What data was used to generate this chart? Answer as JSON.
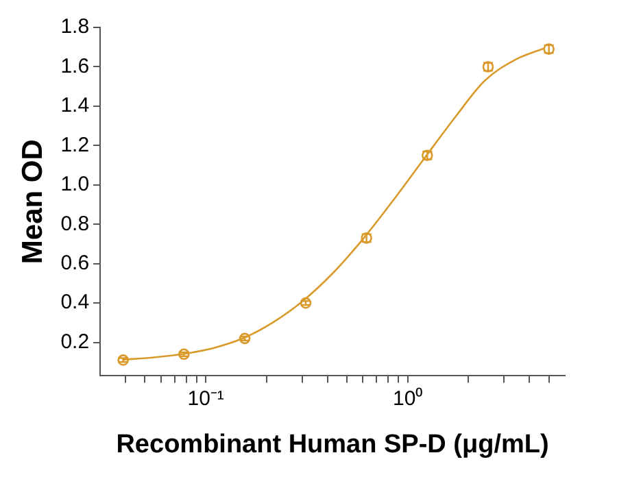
{
  "chart_data": {
    "type": "scatter",
    "xlabel": "Recombinant Human SP-D (μg/mL)",
    "ylabel": "Mean OD",
    "log": "x",
    "xlim": [
      0.03,
      6
    ],
    "xticks": [
      {
        "value": 0.04,
        "label": null
      },
      {
        "value": 0.05,
        "label": null
      },
      {
        "value": 0.06,
        "label": null
      },
      {
        "value": 0.07,
        "label": null
      },
      {
        "value": 0.08,
        "label": null
      },
      {
        "value": 0.09,
        "label": null
      },
      {
        "value": 0.1,
        "label": "10⁻¹"
      },
      {
        "value": 0.2,
        "label": null
      },
      {
        "value": 0.3,
        "label": null
      },
      {
        "value": 0.4,
        "label": null
      },
      {
        "value": 0.5,
        "label": null
      },
      {
        "value": 0.6,
        "label": null
      },
      {
        "value": 0.7,
        "label": null
      },
      {
        "value": 0.8,
        "label": null
      },
      {
        "value": 0.9,
        "label": null
      },
      {
        "value": 1,
        "label": "10⁰"
      },
      {
        "value": 2,
        "label": null
      },
      {
        "value": 3,
        "label": null
      },
      {
        "value": 4,
        "label": null
      },
      {
        "value": 5,
        "label": null
      }
    ],
    "ylim": [
      0.03,
      1.8
    ],
    "yticks": [
      0.2,
      0.4,
      0.6,
      0.8,
      {
        "value": 1,
        "label": "1.0"
      },
      1.2,
      1.4,
      1.6,
      1.8
    ],
    "grid": false,
    "legend": false,
    "series": [
      {
        "marker": "circle",
        "color": "#d99a2b",
        "x": [
          0.039,
          0.078,
          0.156,
          0.3125,
          0.625,
          1.25,
          2.5,
          5
        ],
        "values": [
          0.11,
          0.14,
          0.22,
          0.4,
          0.73,
          1.15,
          1.6,
          1.69
        ],
        "errors": [
          0.01,
          0.01,
          0.01,
          0.01,
          0.02,
          0.02,
          0.02,
          0.02
        ]
      },
      {
        "type": "line",
        "color": "#d99a2b",
        "x": [
          0.0386,
          0.0544,
          0.0769,
          0.108,
          0.153,
          0.214,
          0.303,
          0.425,
          0.607,
          0.867,
          1.205,
          1.72,
          2.41,
          3.41,
          4.74
        ],
        "values": [
          0.112,
          0.123,
          0.141,
          0.17,
          0.221,
          0.3,
          0.411,
          0.551,
          0.731,
          0.935,
          1.133,
          1.345,
          1.53,
          1.636,
          1.694
        ]
      }
    ]
  }
}
